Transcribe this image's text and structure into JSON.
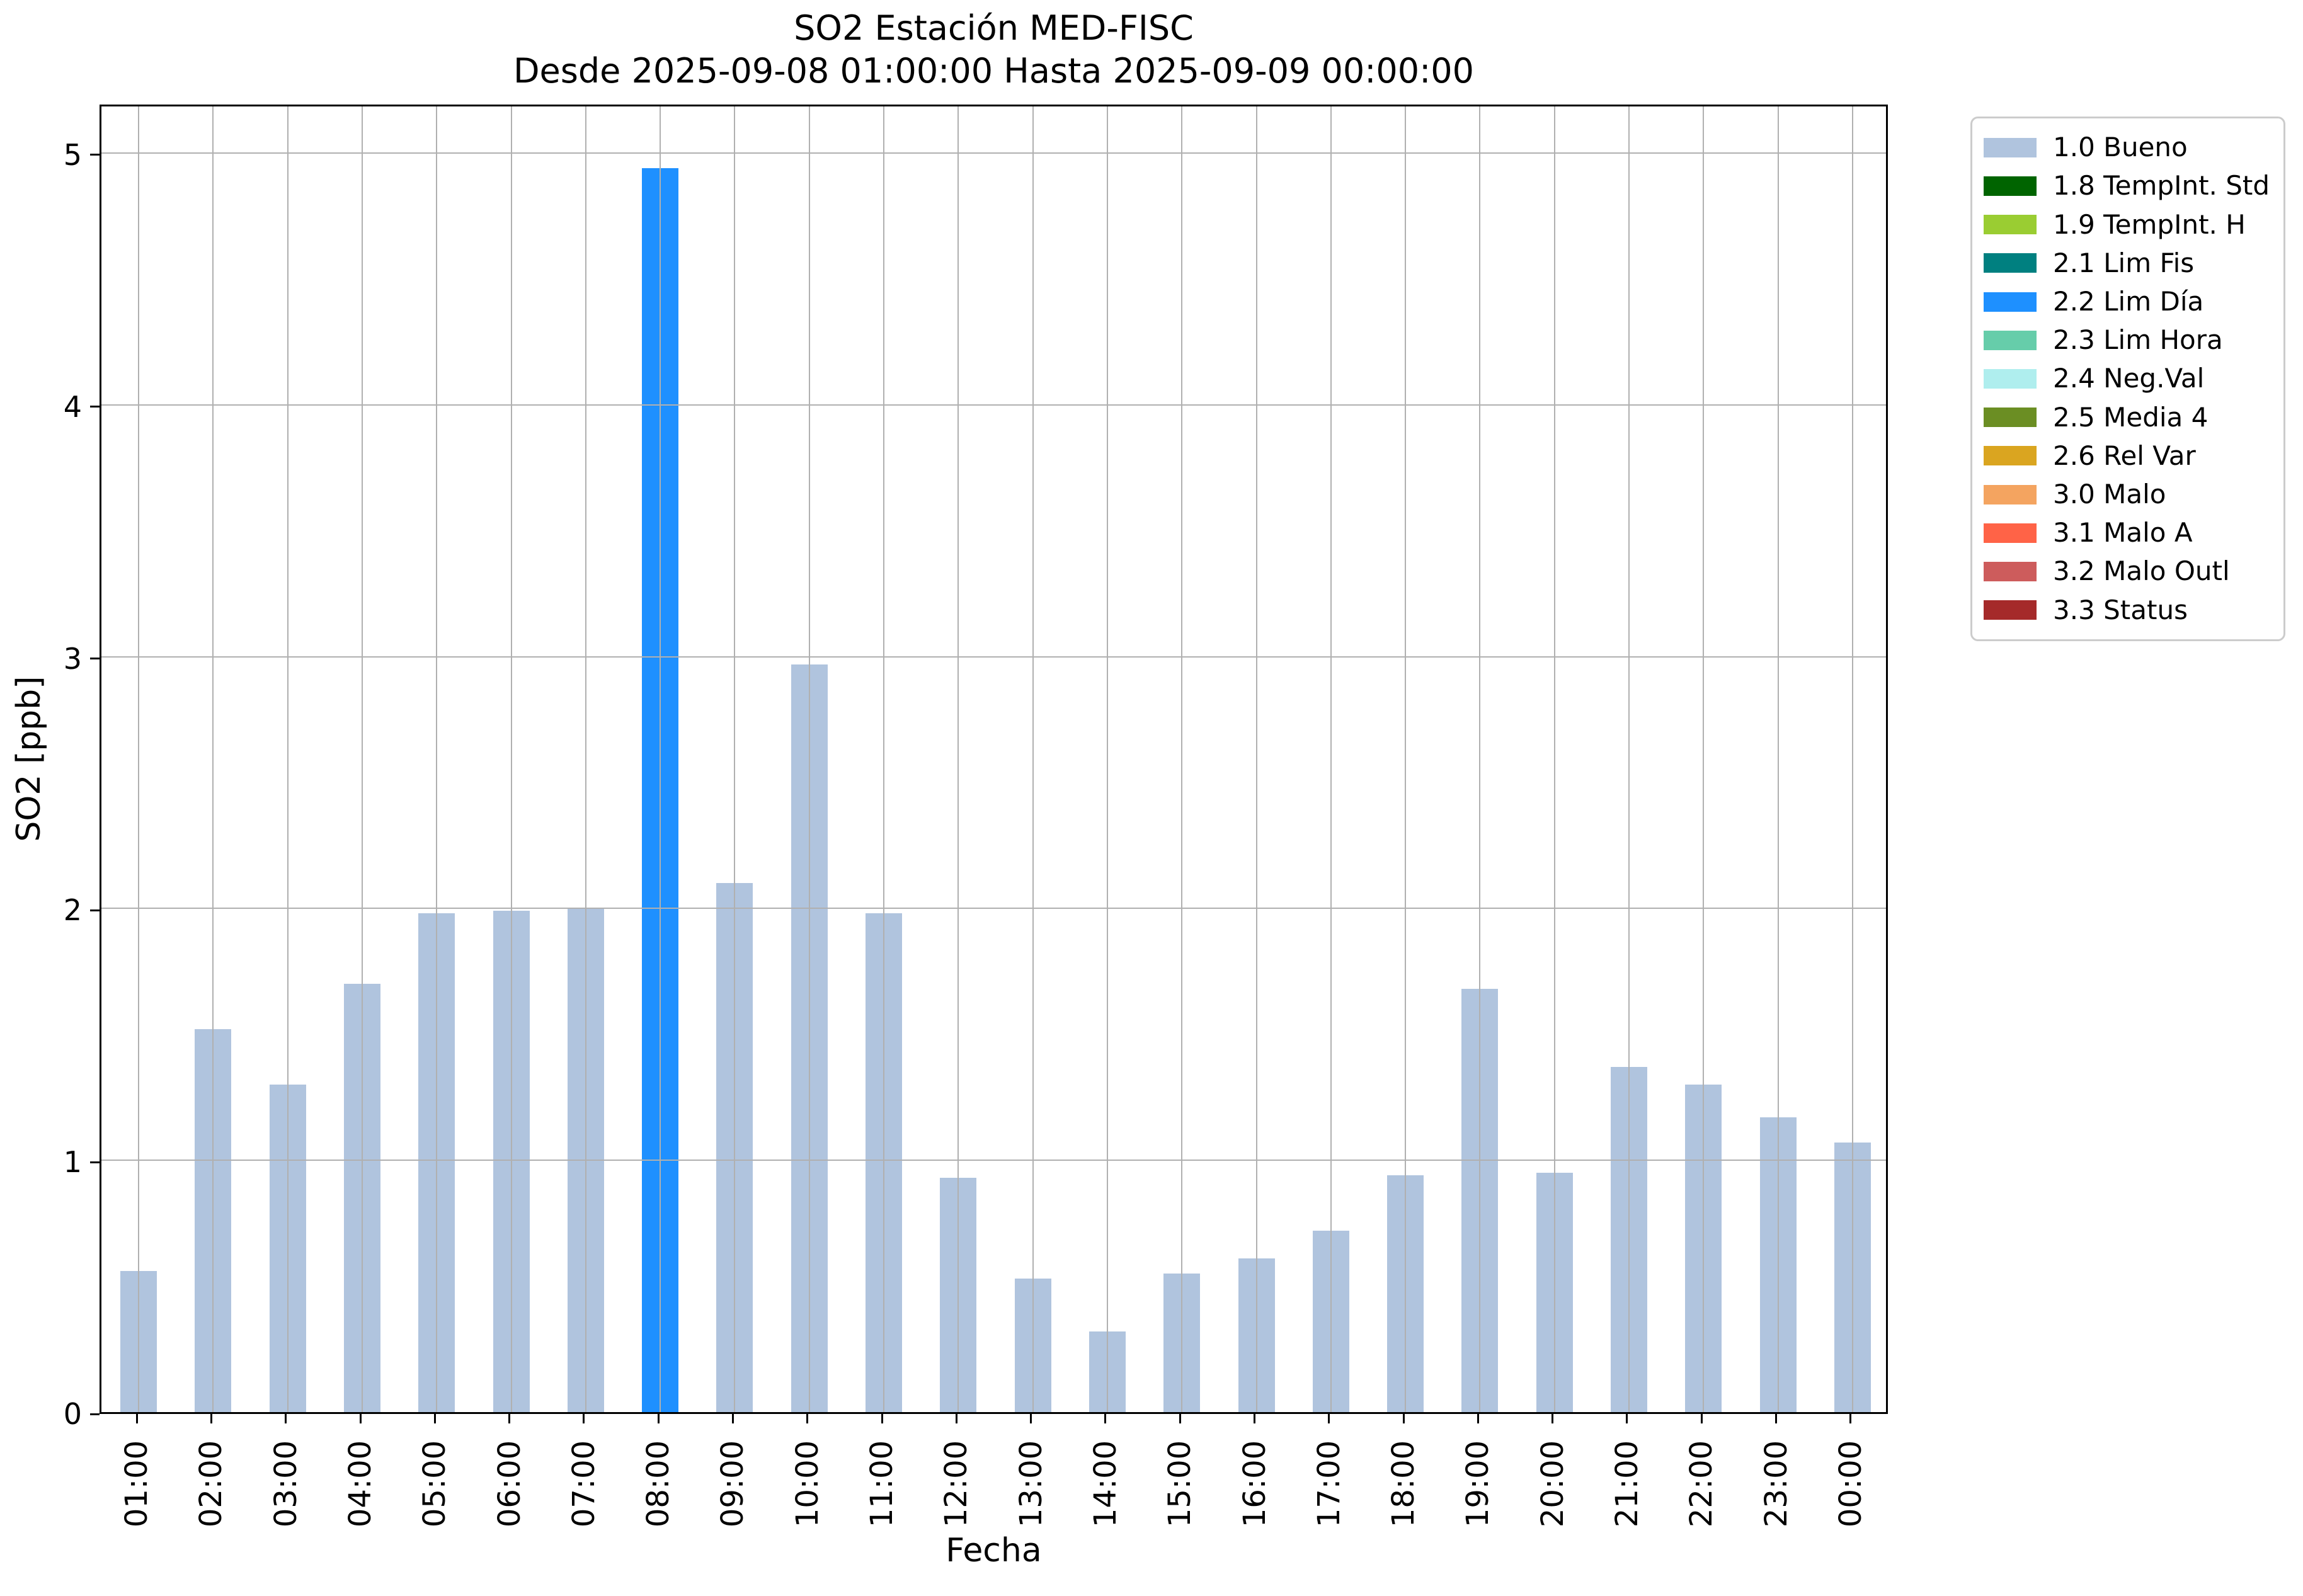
{
  "chart_data": {
    "type": "bar",
    "title": "SO2 Estación MED-FISC",
    "subtitle": "Desde 2025-09-08 01:00:00 Hasta 2025-09-09 00:00:00",
    "xlabel": "Fecha",
    "ylabel": "SO2 [ppb]",
    "ylim": [
      0,
      5.2
    ],
    "yticks": [
      0,
      1,
      2,
      3,
      4,
      5
    ],
    "grid": true,
    "grid_color": "#b0b0b0",
    "legend_position": "outside-upper-right",
    "categories": [
      "01:00",
      "02:00",
      "03:00",
      "04:00",
      "05:00",
      "06:00",
      "07:00",
      "08:00",
      "09:00",
      "10:00",
      "11:00",
      "12:00",
      "13:00",
      "14:00",
      "15:00",
      "16:00",
      "17:00",
      "18:00",
      "19:00",
      "20:00",
      "21:00",
      "22:00",
      "23:00",
      "00:00"
    ],
    "series": [
      {
        "name": "SO2 [ppb]",
        "values": [
          0.56,
          1.52,
          1.3,
          1.7,
          1.98,
          1.99,
          2.0,
          4.94,
          2.1,
          2.97,
          1.98,
          0.93,
          0.53,
          0.32,
          0.55,
          0.61,
          0.72,
          0.94,
          1.68,
          0.95,
          1.37,
          1.3,
          1.17,
          1.07
        ],
        "flags": [
          "1.0 Bueno",
          "1.0 Bueno",
          "1.0 Bueno",
          "1.0 Bueno",
          "1.0 Bueno",
          "1.0 Bueno",
          "1.0 Bueno",
          "2.2 Lim Día",
          "1.0 Bueno",
          "1.0 Bueno",
          "1.0 Bueno",
          "1.0 Bueno",
          "1.0 Bueno",
          "1.0 Bueno",
          "1.0 Bueno",
          "1.0 Bueno",
          "1.0 Bueno",
          "1.0 Bueno",
          "1.0 Bueno",
          "1.0 Bueno",
          "1.0 Bueno",
          "1.0 Bueno",
          "1.0 Bueno",
          "1.0 Bueno"
        ]
      }
    ],
    "flag_colors": {
      "1.0 Bueno": "#B0C4DE",
      "1.8 TempInt. Std": "#006400",
      "1.9 TempInt. H": "#9ACD32",
      "2.1 Lim Fis": "#008080",
      "2.2 Lim Día": "#1E90FF",
      "2.3 Lim Hora": "#66CDAA",
      "2.4 Neg.Val": "#AFEEEE",
      "2.5 Media 4": "#6B8E23",
      "2.6 Rel Var": "#DAA520",
      "3.0 Malo": "#F4A460",
      "3.1 Malo A": "#FF6347",
      "3.2 Malo Outl": "#CD5C5C",
      "3.3 Status": "#A52A2A"
    },
    "legend": [
      {
        "label": "1.0 Bueno",
        "color": "#B0C4DE"
      },
      {
        "label": "1.8 TempInt. Std",
        "color": "#006400"
      },
      {
        "label": "1.9 TempInt. H",
        "color": "#9ACD32"
      },
      {
        "label": "2.1 Lim Fis",
        "color": "#008080"
      },
      {
        "label": "2.2 Lim Día",
        "color": "#1E90FF"
      },
      {
        "label": "2.3 Lim Hora",
        "color": "#66CDAA"
      },
      {
        "label": "2.4 Neg.Val",
        "color": "#AFEEEE"
      },
      {
        "label": "2.5 Media 4",
        "color": "#6B8E23"
      },
      {
        "label": "2.6 Rel Var",
        "color": "#DAA520"
      },
      {
        "label": "3.0 Malo",
        "color": "#F4A460"
      },
      {
        "label": "3.1 Malo A",
        "color": "#FF6347"
      },
      {
        "label": "3.2 Malo Outl",
        "color": "#CD5C5C"
      },
      {
        "label": "3.3 Status",
        "color": "#A52A2A"
      }
    ]
  },
  "colors": {
    "background": "#FFFFFF",
    "spine": "#000000",
    "grid": "#B0B0B0",
    "legend_border": "#CCCCCC",
    "text": "#000000"
  }
}
